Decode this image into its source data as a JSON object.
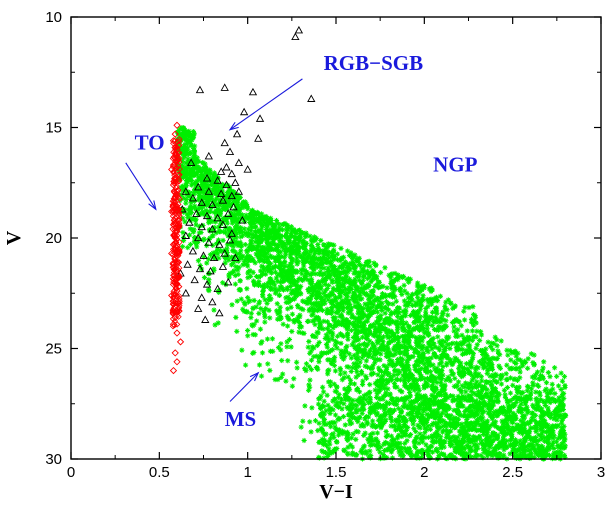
{
  "chart_data": {
    "type": "scatter",
    "title": "",
    "xlabel": "V−I",
    "ylabel": "V",
    "xlim": [
      0,
      3
    ],
    "ylim": [
      30,
      10
    ],
    "y_inverted": true,
    "grid": false,
    "legend": "none",
    "xticks": [
      {
        "value": 0,
        "label": "0"
      },
      {
        "value": 0.5,
        "label": "0.5"
      },
      {
        "value": 1,
        "label": "1"
      },
      {
        "value": 1.5,
        "label": "1.5"
      },
      {
        "value": 2,
        "label": "2"
      },
      {
        "value": 2.5,
        "label": "2.5"
      },
      {
        "value": 3,
        "label": "3"
      }
    ],
    "yticks": [
      {
        "value": 10,
        "label": "10"
      },
      {
        "value": 15,
        "label": "15"
      },
      {
        "value": 20,
        "label": "20"
      },
      {
        "value": 25,
        "label": "25"
      },
      {
        "value": 30,
        "label": "30"
      }
    ],
    "annotations": [
      {
        "text": "RGB−SGB",
        "x": 1.43,
        "y": 12.4,
        "arrow_to": {
          "x": 0.9,
          "y": 15.1
        },
        "arrow_from": {
          "x": 1.31,
          "y": 12.8
        }
      },
      {
        "text": "TO",
        "x": 0.36,
        "y": 16.0,
        "arrow_to": {
          "x": 0.48,
          "y": 18.7
        },
        "arrow_from": {
          "x": 0.31,
          "y": 16.6
        }
      },
      {
        "text": "NGP",
        "x": 2.05,
        "y": 17.0
      },
      {
        "text": "MS",
        "x": 0.87,
        "y": 28.5,
        "arrow_to": {
          "x": 1.06,
          "y": 26.1
        },
        "arrow_from": {
          "x": 0.9,
          "y": 27.4
        }
      }
    ],
    "colors": {
      "annotation": "#1a1adc",
      "ms": "#00ee00",
      "to": "#ff0000",
      "rgb_sgb": "#000000"
    },
    "series": [
      {
        "marker": "triangle-open",
        "color": "#000000",
        "points": [
          [
            1.29,
            10.6
          ],
          [
            1.27,
            10.9
          ],
          [
            1.36,
            13.7
          ],
          [
            0.87,
            13.2
          ],
          [
            0.73,
            13.3
          ],
          [
            1.03,
            13.4
          ],
          [
            0.98,
            14.3
          ],
          [
            1.07,
            14.6
          ],
          [
            1.06,
            15.5
          ],
          [
            0.94,
            15.3
          ],
          [
            0.78,
            16.3
          ],
          [
            0.87,
            15.7
          ],
          [
            0.9,
            16.1
          ],
          [
            0.95,
            16.6
          ],
          [
            0.88,
            16.8
          ],
          [
            0.85,
            17.0
          ],
          [
            0.91,
            17.1
          ],
          [
            0.77,
            17.3
          ],
          [
            0.83,
            17.4
          ],
          [
            0.88,
            17.6
          ],
          [
            0.93,
            17.5
          ],
          [
            0.72,
            17.7
          ],
          [
            0.65,
            17.9
          ],
          [
            0.78,
            17.9
          ],
          [
            0.85,
            18.0
          ],
          [
            0.91,
            18.1
          ],
          [
            0.69,
            18.2
          ],
          [
            0.74,
            18.4
          ],
          [
            0.8,
            18.5
          ],
          [
            0.86,
            18.3
          ],
          [
            0.92,
            18.6
          ],
          [
            0.63,
            18.7
          ],
          [
            0.71,
            18.9
          ],
          [
            0.77,
            19.0
          ],
          [
            0.83,
            19.1
          ],
          [
            0.89,
            18.9
          ],
          [
            0.67,
            19.3
          ],
          [
            0.74,
            19.5
          ],
          [
            0.8,
            19.6
          ],
          [
            0.86,
            19.4
          ],
          [
            0.91,
            19.8
          ],
          [
            0.65,
            19.9
          ],
          [
            0.72,
            20.0
          ],
          [
            0.78,
            20.2
          ],
          [
            0.84,
            20.3
          ],
          [
            0.9,
            20.1
          ],
          [
            0.69,
            20.6
          ],
          [
            0.75,
            20.8
          ],
          [
            0.81,
            20.9
          ],
          [
            0.87,
            20.7
          ],
          [
            0.93,
            20.9
          ],
          [
            0.66,
            21.2
          ],
          [
            0.73,
            21.4
          ],
          [
            0.79,
            21.5
          ],
          [
            0.86,
            21.3
          ],
          [
            0.7,
            21.9
          ],
          [
            0.77,
            22.1
          ],
          [
            0.83,
            22.3
          ],
          [
            0.89,
            22.0
          ],
          [
            0.74,
            22.7
          ],
          [
            0.8,
            22.9
          ],
          [
            0.72,
            23.2
          ],
          [
            0.84,
            23.4
          ],
          [
            0.76,
            23.7
          ],
          [
            0.65,
            22.5
          ],
          [
            0.62,
            21.6
          ],
          [
            0.95,
            17.9
          ],
          [
            1.0,
            16.9
          ],
          [
            0.97,
            19.2
          ],
          [
            0.68,
            16.6
          ]
        ]
      },
      {
        "marker": "diamond-open",
        "color": "#ff0000",
        "points": [
          [
            0.6,
            14.9
          ],
          [
            0.59,
            15.3
          ],
          [
            0.58,
            15.6
          ],
          [
            0.6,
            16.0
          ],
          [
            0.59,
            16.4
          ],
          [
            0.58,
            16.7
          ],
          [
            0.6,
            17.0
          ],
          [
            0.59,
            17.3
          ],
          [
            0.58,
            17.6
          ],
          [
            0.6,
            17.9
          ],
          [
            0.59,
            18.2
          ],
          [
            0.58,
            18.5
          ],
          [
            0.6,
            18.8
          ],
          [
            0.59,
            19.1
          ],
          [
            0.58,
            19.4
          ],
          [
            0.6,
            19.7
          ],
          [
            0.59,
            20.0
          ],
          [
            0.58,
            20.3
          ],
          [
            0.6,
            20.6
          ],
          [
            0.59,
            20.9
          ],
          [
            0.58,
            21.2
          ],
          [
            0.6,
            21.5
          ],
          [
            0.59,
            21.8
          ],
          [
            0.58,
            22.1
          ],
          [
            0.6,
            22.4
          ],
          [
            0.59,
            22.7
          ],
          [
            0.58,
            23.0
          ],
          [
            0.6,
            23.3
          ],
          [
            0.59,
            23.6
          ],
          [
            0.58,
            23.9
          ],
          [
            0.6,
            24.3
          ],
          [
            0.59,
            25.2
          ],
          [
            0.58,
            26.0
          ],
          [
            0.61,
            15.8
          ],
          [
            0.61,
            17.4
          ],
          [
            0.61,
            19.0
          ],
          [
            0.61,
            20.6
          ],
          [
            0.61,
            22.2
          ],
          [
            0.57,
            16.9
          ],
          [
            0.57,
            18.8
          ],
          [
            0.57,
            20.7
          ],
          [
            0.57,
            22.6
          ],
          [
            0.62,
            24.7
          ],
          [
            0.6,
            25.6
          ]
        ]
      }
    ],
    "dense_series": {
      "marker": "asterisk",
      "color": "#00ee00",
      "point_count": 4200,
      "population_note": "",
      "envelope_vi": [
        0.6,
        2.8
      ],
      "envelope_v": [
        14.9,
        30.0
      ]
    }
  }
}
